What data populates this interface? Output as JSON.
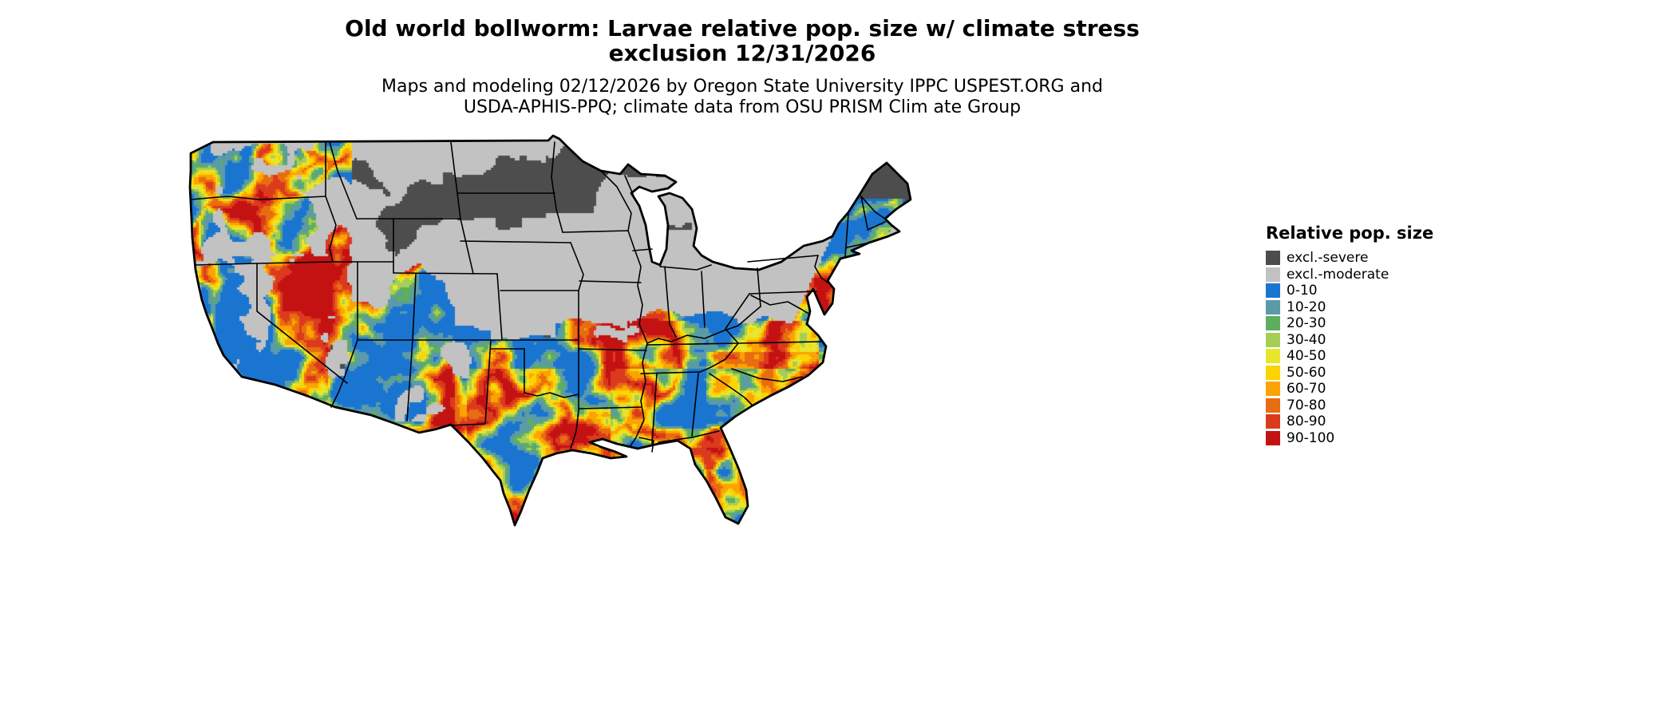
{
  "title": {
    "line1": "Old world bollworm: Larvae relative pop. size w/ climate stress",
    "line2": "exclusion 12/31/2026"
  },
  "subtitle": {
    "line1": "Maps and modeling 02/12/2026 by Oregon State University IPPC USPEST.ORG and",
    "line2": "USDA-APHIS-PPQ; climate data from OSU PRISM Clim ate Group"
  },
  "map": {
    "border_color": "#000000",
    "ocean_color": "#ffffff",
    "land_base_color": "#c2c2c2"
  },
  "legend": {
    "title": "Relative pop. size",
    "items": [
      {
        "label": "excl.-severe",
        "color": "#4d4d4d"
      },
      {
        "label": "excl.-moderate",
        "color": "#c2c2c2"
      },
      {
        "label": "0-10",
        "color": "#1a75d1"
      },
      {
        "label": "10-20",
        "color": "#5b9aa9"
      },
      {
        "label": "20-30",
        "color": "#5fae5f"
      },
      {
        "label": "30-40",
        "color": "#a5ce56"
      },
      {
        "label": "40-50",
        "color": "#e7e52c"
      },
      {
        "label": "50-60",
        "color": "#fcd303"
      },
      {
        "label": "60-70",
        "color": "#fba303"
      },
      {
        "label": "70-80",
        "color": "#e86d10"
      },
      {
        "label": "80-90",
        "color": "#dc3a1d"
      },
      {
        "label": "90-100",
        "color": "#c41212"
      }
    ]
  }
}
